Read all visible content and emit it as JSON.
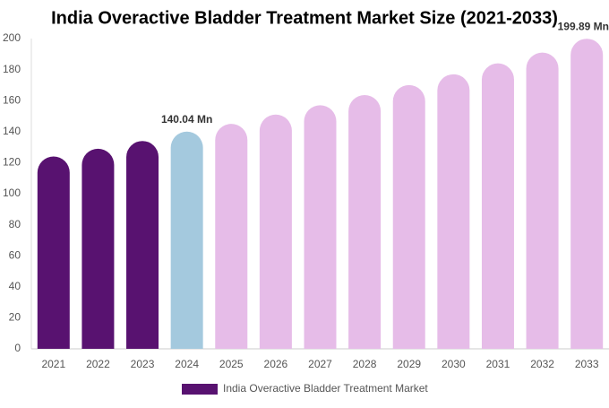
{
  "chart_data": {
    "type": "bar",
    "title": "India Overactive Bladder Treatment Market Size (2021-2033)",
    "categories": [
      "2021",
      "2022",
      "2023",
      "2024",
      "2025",
      "2026",
      "2027",
      "2028",
      "2029",
      "2030",
      "2031",
      "2032",
      "2033"
    ],
    "series": [
      {
        "name": "India Overactive Bladder Treatment Market",
        "color": "#581270",
        "colors": [
          "#581270",
          "#581270",
          "#581270",
          "#a4c9de",
          "#e6bce8",
          "#e6bce8",
          "#e6bce8",
          "#e6bce8",
          "#e6bce8",
          "#e6bce8",
          "#e6bce8",
          "#e6bce8",
          "#e6bce8"
        ],
        "values": [
          124,
          129,
          134,
          140.04,
          145,
          151,
          157,
          163.6,
          170,
          177,
          184,
          191,
          199.89
        ],
        "value_labels": [
          null,
          null,
          null,
          "140.04 Mn",
          null,
          null,
          null,
          null,
          null,
          null,
          null,
          null,
          "199.89 Mn"
        ]
      }
    ],
    "ylim": [
      0,
      200
    ],
    "yticks": [
      0,
      20,
      40,
      60,
      80,
      100,
      120,
      140,
      160,
      180,
      200
    ],
    "grid": false
  }
}
